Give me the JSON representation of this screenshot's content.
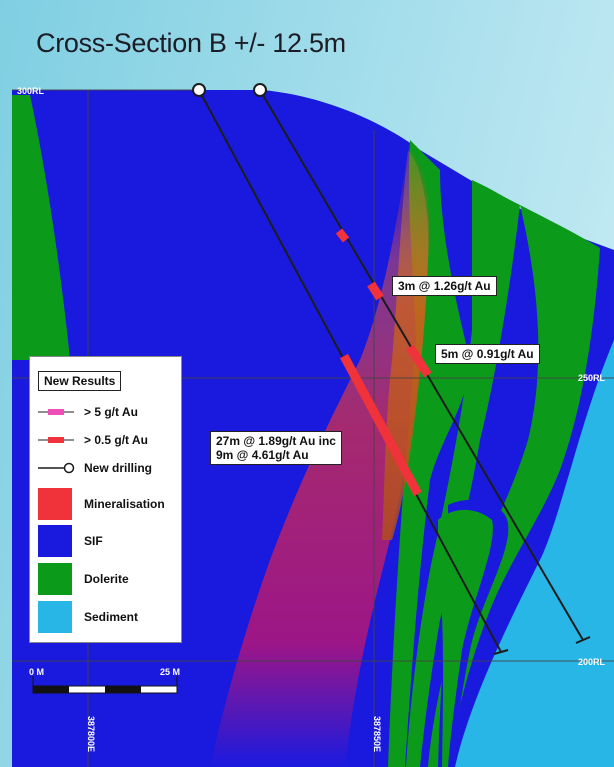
{
  "title": "Cross-Section B +/- 12.5m",
  "rl_labels": {
    "top": "300RL",
    "middle": "250RL",
    "bottom": "200RL"
  },
  "easting_labels": {
    "left": "387800E",
    "right": "387850E"
  },
  "callouts": {
    "c1": "3m @ 1.26g/t Au",
    "c2": "5m @ 0.91g/t Au",
    "c3_line1": "27m @ 1.89g/t Au inc",
    "c3_line2": "9m @ 4.61g/t Au"
  },
  "scale": {
    "left": "0 M",
    "right": "25 M"
  },
  "legend": {
    "title": "New Results",
    "items": [
      {
        "label": "> 5 g/t Au",
        "symbol": "pink-interval"
      },
      {
        "label": "> 0.5 g/t Au",
        "symbol": "red-interval"
      },
      {
        "label": "New drilling",
        "symbol": "drill-collar-line"
      },
      {
        "label": "Mineralisation",
        "color": "#f0323a"
      },
      {
        "label": "SIF",
        "color": "#1a1adf"
      },
      {
        "label": "Dolerite",
        "color": "#0c9a1b"
      },
      {
        "label": "Sediment",
        "color": "#27b6e6"
      }
    ]
  },
  "colors": {
    "sky": "#8fd5e6",
    "sif": "#1a1adf",
    "dolerite": "#0c9a1b",
    "sediment": "#27b6e6",
    "mineralisation": "#f0323a",
    "high_grade": "#ee4fb7",
    "drill": "#1c1c1c"
  }
}
